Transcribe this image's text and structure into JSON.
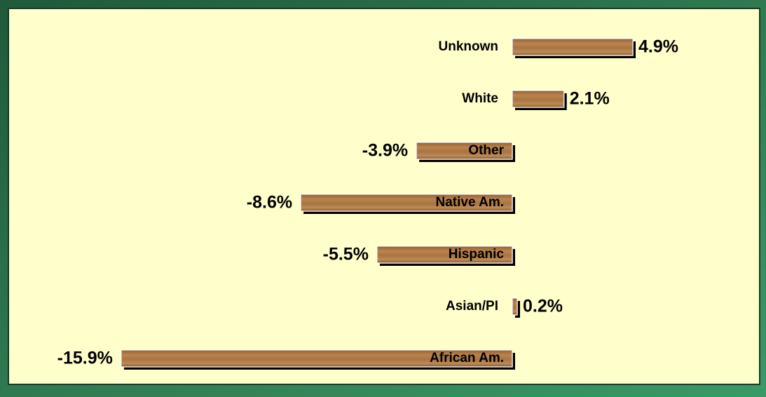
{
  "chart_data": {
    "type": "bar",
    "orientation": "horizontal",
    "categories": [
      "Unknown",
      "White",
      "Other",
      "Native Am.",
      "Hispanic",
      "Asian/PI",
      "African Am."
    ],
    "values": [
      4.9,
      2.1,
      -3.9,
      -8.6,
      -5.5,
      0.2,
      -15.9
    ],
    "value_labels": [
      "4.9%",
      "2.1%",
      "-3.9%",
      "-8.6%",
      "-5.5%",
      "0.2%",
      "-15.9%"
    ],
    "color": "#a87440"
  }
}
